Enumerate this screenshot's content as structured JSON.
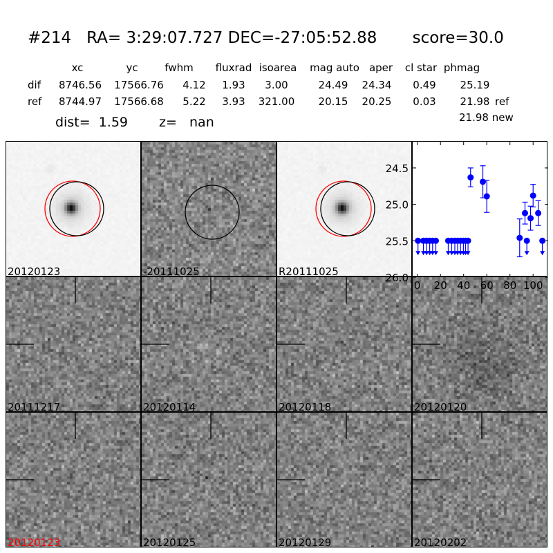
{
  "header": {
    "title": "#214   RA= 3:29:07.727 DEC=-27:05:52.88       score=30.0",
    "columns": [
      "xc",
      "yc",
      "fwhm",
      "fluxrad",
      "isoarea",
      "mag auto",
      "aper",
      "cl star",
      "phmag"
    ],
    "rows": [
      {
        "label": "dif",
        "values": [
          "8746.56",
          "17566.76",
          "4.12",
          "1.93",
          "3.00",
          "24.49",
          "24.34",
          "0.49",
          "25.19"
        ],
        "suffix": ""
      },
      {
        "label": "ref",
        "values": [
          "8744.97",
          "17566.68",
          "5.22",
          "3.93",
          "321.00",
          "20.15",
          "20.25",
          "0.03",
          "21.98"
        ],
        "suffix": "ref"
      }
    ],
    "new_phmag": "21.98 new",
    "dist": "dist=  1.59",
    "z": "z=   nan"
  },
  "panels": [
    {
      "label": "20120123",
      "type": "star"
    },
    {
      "label": "-20111025",
      "type": "diff"
    },
    {
      "label": "R20111025",
      "type": "star"
    },
    {
      "label": "20111217",
      "type": "noise"
    },
    {
      "label": "20120114",
      "type": "noise"
    },
    {
      "label": "20120118",
      "type": "noise"
    },
    {
      "label": "20120120",
      "type": "noise"
    },
    {
      "label": "20120123",
      "type": "noise",
      "label_color": "#ff0000"
    },
    {
      "label": "20120125",
      "type": "noise"
    },
    {
      "label": "20120129",
      "type": "noise"
    },
    {
      "label": "20120202",
      "type": "noise"
    }
  ],
  "colors": {
    "marker": "#0000ff",
    "circle_ref": "#ff0000",
    "circle_det": "#000000"
  },
  "chart_data": {
    "type": "scatter",
    "title": "",
    "xlabel": "",
    "ylabel": "",
    "xlim": [
      -4,
      113
    ],
    "ylim": [
      26.0,
      24.14
    ],
    "y_inverted": true,
    "xticks": [
      "0",
      "20",
      "40",
      "60",
      "80",
      "100"
    ],
    "yticks": [
      "24.5",
      "25.0",
      "25.5",
      "26.0"
    ],
    "grid": false,
    "detections": [
      {
        "x": 46,
        "y": 24.63,
        "err": 0.13
      },
      {
        "x": 56.6,
        "y": 24.69,
        "err": 0.22
      },
      {
        "x": 60,
        "y": 24.89,
        "err": 0.22
      },
      {
        "x": 88.4,
        "y": 25.46,
        "err": 0.26
      },
      {
        "x": 93,
        "y": 25.12,
        "err": 0.15
      },
      {
        "x": 97.8,
        "y": 25.19,
        "err": 0.165
      },
      {
        "x": 100,
        "y": 24.88,
        "err": 0.155
      },
      {
        "x": 104.4,
        "y": 25.12,
        "err": 0.17
      }
    ],
    "upper_limits": {
      "y": 25.5,
      "x": [
        0.6,
        5.3,
        8,
        10.7,
        13.2,
        16,
        26.7,
        29.7,
        32.4,
        34.8,
        37.3,
        39.8,
        41.7,
        43.8,
        94.6,
        108
      ]
    }
  }
}
